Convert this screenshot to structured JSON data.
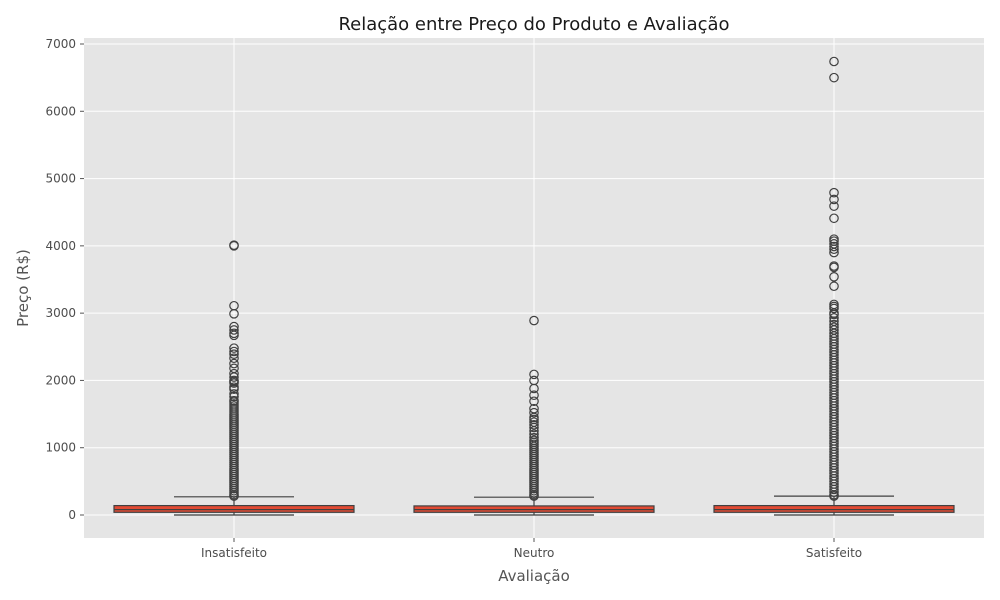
{
  "chart_data": {
    "type": "box",
    "title": "Relação entre Preço do Produto e Avaliação",
    "xlabel": "Avaliação",
    "ylabel": "Preço (R$)",
    "ylim": [
      -300,
      7000
    ],
    "yticks": [
      0,
      1000,
      2000,
      3000,
      4000,
      5000,
      6000,
      7000
    ],
    "grid": true,
    "colors": {
      "background": "#E5E5E5",
      "box": "#E24A33",
      "line": "#404040"
    },
    "categories": [
      "Insatisfeito",
      "Neutro",
      "Satisfeito"
    ],
    "boxes": [
      {
        "name": "Insatisfeito",
        "min": 0,
        "q1": 40,
        "median": 80,
        "q3": 140,
        "max": 270,
        "outliers": [
          4010,
          4000,
          3110,
          2990,
          2800,
          2750,
          2700,
          2670,
          2480,
          2430,
          2390,
          2330,
          2250,
          2180,
          2100,
          2050,
          2000,
          1980,
          1960,
          1900,
          1870,
          1800,
          1760,
          1700,
          1680,
          1650,
          1620,
          1590,
          1560,
          1530,
          1500,
          1470,
          1440,
          1410,
          1380,
          1350,
          1320,
          1290,
          1260,
          1230,
          1200,
          1170,
          1140,
          1110,
          1080,
          1050,
          1020,
          990,
          960,
          930,
          900,
          870,
          840,
          810,
          780,
          750,
          720,
          690,
          660,
          630,
          600,
          570,
          540,
          510,
          480,
          450,
          420,
          390,
          360,
          330,
          300,
          280
        ]
      },
      {
        "name": "Neutro",
        "min": 0,
        "q1": 40,
        "median": 80,
        "q3": 135,
        "max": 265,
        "outliers": [
          2890,
          2090,
          2000,
          1880,
          1780,
          1690,
          1580,
          1520,
          1450,
          1420,
          1380,
          1340,
          1300,
          1250,
          1200,
          1150,
          1110,
          1080,
          1050,
          1020,
          990,
          960,
          930,
          900,
          870,
          840,
          810,
          780,
          750,
          720,
          690,
          660,
          630,
          600,
          570,
          540,
          510,
          480,
          450,
          420,
          390,
          360,
          330,
          300,
          280
        ]
      },
      {
        "name": "Satisfeito",
        "min": 0,
        "q1": 40,
        "median": 80,
        "q3": 140,
        "max": 280,
        "outliers": [
          6740,
          6500,
          4790,
          4690,
          4590,
          4410,
          4100,
          4070,
          4030,
          3990,
          3950,
          3900,
          3700,
          3680,
          3540,
          3400,
          3130,
          3100,
          3070,
          3000,
          2980,
          2930,
          2880,
          2830,
          2790,
          2750,
          2700,
          2660,
          2620,
          2580,
          2540,
          2500,
          2460,
          2420,
          2380,
          2340,
          2300,
          2260,
          2220,
          2180,
          2140,
          2100,
          2060,
          2020,
          1980,
          1940,
          1900,
          1860,
          1820,
          1780,
          1740,
          1700,
          1660,
          1620,
          1580,
          1540,
          1500,
          1460,
          1420,
          1380,
          1340,
          1300,
          1260,
          1220,
          1180,
          1140,
          1100,
          1060,
          1020,
          980,
          940,
          900,
          860,
          820,
          780,
          740,
          700,
          660,
          620,
          580,
          540,
          500,
          460,
          420,
          380,
          340,
          300,
          280
        ]
      }
    ]
  }
}
